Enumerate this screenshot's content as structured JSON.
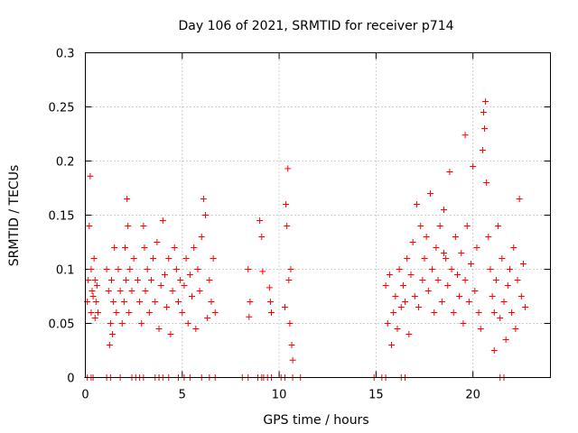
{
  "chart_data": {
    "type": "scatter",
    "title": "Day 106 of 2021, SRMTID for receiver p714",
    "xlabel": "GPS time / hours",
    "ylabel": "SRMTID / TECUs",
    "xlim": [
      0,
      24
    ],
    "ylim": [
      0,
      0.3
    ],
    "xticks": [
      0,
      5,
      10,
      15,
      20
    ],
    "yticks": [
      0,
      0.05,
      0.1,
      0.15,
      0.2,
      0.25,
      0.3
    ],
    "xtick_labels": [
      "0",
      "5",
      "10",
      "15",
      "20"
    ],
    "ytick_labels": [
      "0",
      "0.05",
      "0.1",
      "0.15",
      "0.2",
      "0.25",
      "0.3"
    ],
    "grid": true,
    "marker": "+",
    "color": "#ff0000",
    "series": [
      {
        "name": "SRMTID",
        "x": [
          0.1,
          0.15,
          0.2,
          0.25,
          0.3,
          0.3,
          0.35,
          0.4,
          0.45,
          0.5,
          0.5,
          0.55,
          0.6,
          0.65,
          1.1,
          1.2,
          1.25,
          1.3,
          1.35,
          1.4,
          1.45,
          1.5,
          1.6,
          1.7,
          1.8,
          1.9,
          2.0,
          2.05,
          2.1,
          2.15,
          2.2,
          2.25,
          2.3,
          2.4,
          2.5,
          2.7,
          2.8,
          2.9,
          3.0,
          3.05,
          3.1,
          3.2,
          3.3,
          3.4,
          3.5,
          3.6,
          3.7,
          3.8,
          3.9,
          4.0,
          4.1,
          4.2,
          4.3,
          4.4,
          4.5,
          4.6,
          4.7,
          4.8,
          4.9,
          5.0,
          5.1,
          5.2,
          5.3,
          5.4,
          5.5,
          5.6,
          5.7,
          5.8,
          5.9,
          6.0,
          6.1,
          6.2,
          6.3,
          6.4,
          6.5,
          6.6,
          6.7,
          8.4,
          8.5,
          8.45,
          9.0,
          9.1,
          9.15,
          9.5,
          9.6,
          9.55,
          10.3,
          10.35,
          10.4,
          10.45,
          10.5,
          10.55,
          10.6,
          10.65,
          10.7,
          15.5,
          15.6,
          15.7,
          15.8,
          15.9,
          16.0,
          16.1,
          16.2,
          16.3,
          16.4,
          16.5,
          16.6,
          16.7,
          16.8,
          16.9,
          17.0,
          17.1,
          17.2,
          17.3,
          17.4,
          17.5,
          17.6,
          17.7,
          17.8,
          17.9,
          18.0,
          18.1,
          18.2,
          18.3,
          18.4,
          18.5,
          18.6,
          18.7,
          18.8,
          18.9,
          19.0,
          19.1,
          19.2,
          19.3,
          19.4,
          19.5,
          19.6,
          19.7,
          19.8,
          19.9,
          20.0,
          20.1,
          20.2,
          20.3,
          20.4,
          20.5,
          20.55,
          20.6,
          20.65,
          20.7,
          20.8,
          20.9,
          21.0,
          21.1,
          21.2,
          21.3,
          21.4,
          21.5,
          21.6,
          21.7,
          21.8,
          21.9,
          22.0,
          22.1,
          22.2,
          22.3,
          22.4,
          22.5,
          22.6,
          22.7,
          19.6,
          18.5,
          21.1
        ],
        "y": [
          0.07,
          0.09,
          0.14,
          0.186,
          0.06,
          0.1,
          0.08,
          0.075,
          0.11,
          0.055,
          0.09,
          0.07,
          0.085,
          0.06,
          0.1,
          0.08,
          0.03,
          0.05,
          0.09,
          0.04,
          0.07,
          0.12,
          0.06,
          0.1,
          0.08,
          0.05,
          0.07,
          0.12,
          0.09,
          0.165,
          0.14,
          0.06,
          0.1,
          0.08,
          0.11,
          0.09,
          0.07,
          0.05,
          0.14,
          0.12,
          0.08,
          0.1,
          0.06,
          0.09,
          0.11,
          0.07,
          0.125,
          0.045,
          0.085,
          0.145,
          0.095,
          0.065,
          0.11,
          0.04,
          0.08,
          0.12,
          0.1,
          0.07,
          0.09,
          0.06,
          0.085,
          0.11,
          0.05,
          0.095,
          0.075,
          0.12,
          0.045,
          0.1,
          0.08,
          0.13,
          0.165,
          0.15,
          0.055,
          0.09,
          0.07,
          0.11,
          0.06,
          0.1,
          0.07,
          0.056,
          0.145,
          0.13,
          0.098,
          0.083,
          0.06,
          0.07,
          0.065,
          0.16,
          0.14,
          0.193,
          0.09,
          0.05,
          0.1,
          0.03,
          0.016,
          0.085,
          0.05,
          0.095,
          0.03,
          0.06,
          0.075,
          0.045,
          0.1,
          0.065,
          0.085,
          0.07,
          0.11,
          0.04,
          0.095,
          0.125,
          0.075,
          0.16,
          0.065,
          0.14,
          0.09,
          0.11,
          0.13,
          0.08,
          0.17,
          0.1,
          0.06,
          0.12,
          0.09,
          0.14,
          0.07,
          0.155,
          0.11,
          0.085,
          0.19,
          0.1,
          0.06,
          0.13,
          0.095,
          0.075,
          0.115,
          0.05,
          0.09,
          0.14,
          0.07,
          0.105,
          0.195,
          0.08,
          0.12,
          0.06,
          0.045,
          0.21,
          0.245,
          0.23,
          0.255,
          0.18,
          0.13,
          0.1,
          0.075,
          0.06,
          0.09,
          0.14,
          0.055,
          0.11,
          0.07,
          0.035,
          0.085,
          0.1,
          0.06,
          0.12,
          0.045,
          0.09,
          0.165,
          0.075,
          0.105,
          0.065,
          0.224,
          0.115,
          0.025
        ],
        "zero_x": [
          0.1,
          0.3,
          0.4,
          1.1,
          1.3,
          1.8,
          2.4,
          2.6,
          2.8,
          3.0,
          3.6,
          3.8,
          4.0,
          4.3,
          4.8,
          5.1,
          5.4,
          6.0,
          6.4,
          6.7,
          8.1,
          8.4,
          8.9,
          9.1,
          9.2,
          9.4,
          9.6,
          10.1,
          10.3,
          10.7,
          11.1,
          14.9,
          15.3,
          15.5,
          16.3,
          16.5,
          21.4,
          21.6
        ]
      }
    ]
  }
}
